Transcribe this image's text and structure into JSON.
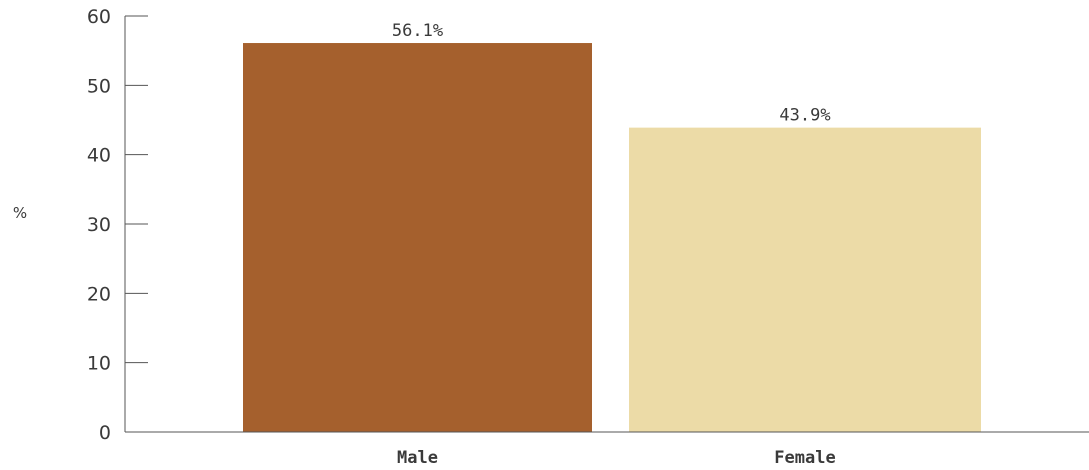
{
  "chart_data": {
    "type": "bar",
    "categories": [
      "Male",
      "Female"
    ],
    "values": [
      56.1,
      43.9
    ],
    "data_labels": [
      "56.1%",
      "43.9%"
    ],
    "colors": [
      "#a5602d",
      "#ecdba7"
    ],
    "title": "",
    "xlabel": "",
    "ylabel": "%",
    "ylim": [
      0,
      60
    ],
    "yticks": [
      0,
      10,
      20,
      30,
      40,
      50,
      60
    ],
    "grid": false,
    "legend": "none"
  }
}
